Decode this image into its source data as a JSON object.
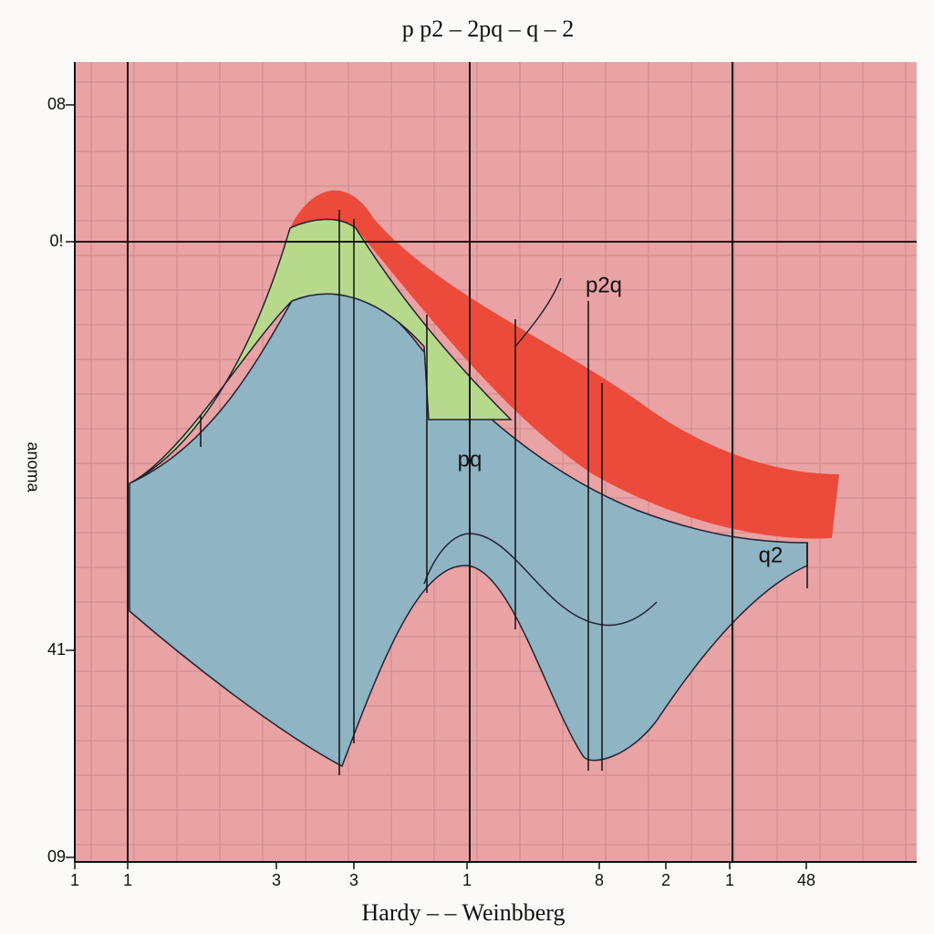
{
  "title": "p p2 – 2pq – q – 2",
  "y_axis_label": "anoma",
  "x_axis_label": "Hardy – – Weinbberg",
  "y_tick_labels": [
    "08",
    "0!",
    "41",
    "09"
  ],
  "x_tick_labels": [
    "1",
    "1",
    "3",
    "3",
    "1",
    "8",
    "2",
    "1",
    "48"
  ],
  "annotations": [
    "p2q",
    "pq",
    "q2"
  ]
}
